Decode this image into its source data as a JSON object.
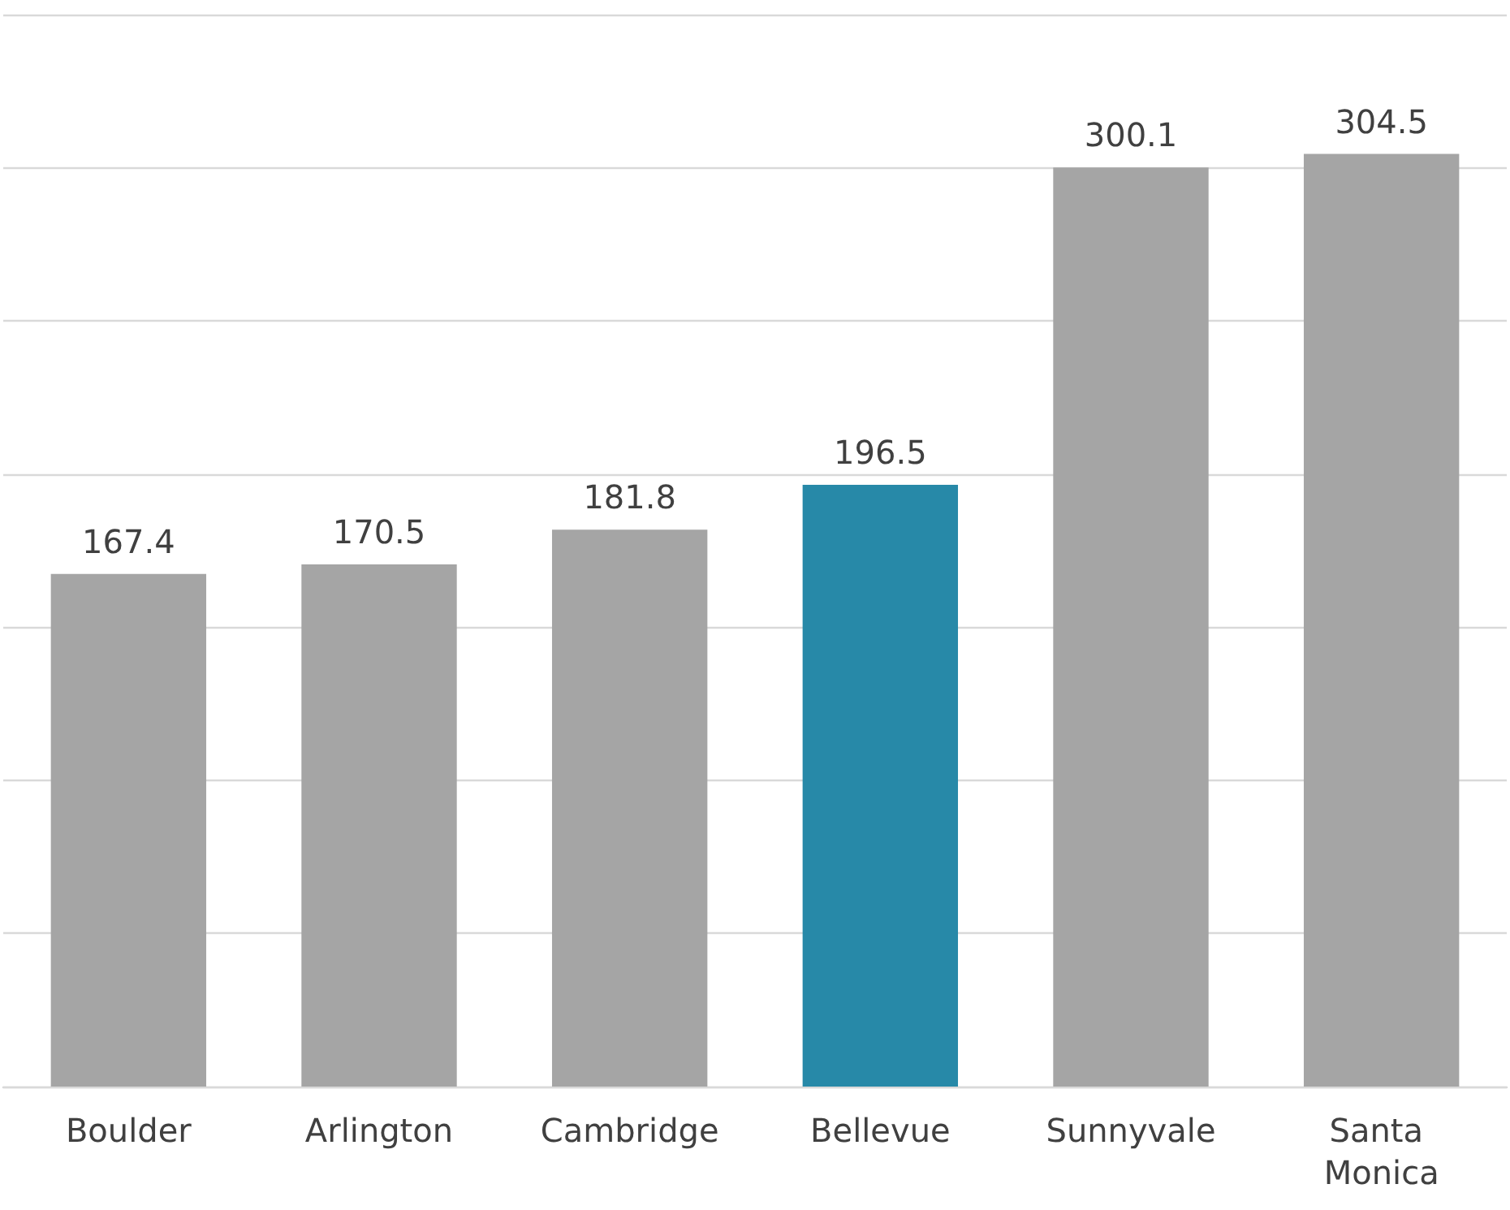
{
  "chart_data": {
    "type": "bar",
    "categories": [
      "Boulder",
      "Arlington",
      "Cambridge",
      "Bellevue",
      "Sunnyvale",
      "Santa Monica"
    ],
    "values": [
      167.4,
      170.5,
      181.8,
      196.5,
      300.1,
      304.5
    ],
    "colors": [
      "#a5a5a5",
      "#a5a5a5",
      "#a5a5a5",
      "#2789a8",
      "#a5a5a5",
      "#a5a5a5"
    ],
    "ylim": [
      0,
      350
    ],
    "yticks": [
      {
        "value": 0,
        "label": null
      },
      {
        "value": 50,
        "label": null
      },
      {
        "value": 100,
        "label": null
      },
      {
        "value": 150,
        "label": null
      },
      {
        "value": 200,
        "label": null
      },
      {
        "value": 250,
        "label": null
      },
      {
        "value": 300,
        "label": null
      },
      {
        "value": 350,
        "label": null
      }
    ],
    "grid": "y",
    "data_labels": true,
    "tick_labels": "x"
  }
}
